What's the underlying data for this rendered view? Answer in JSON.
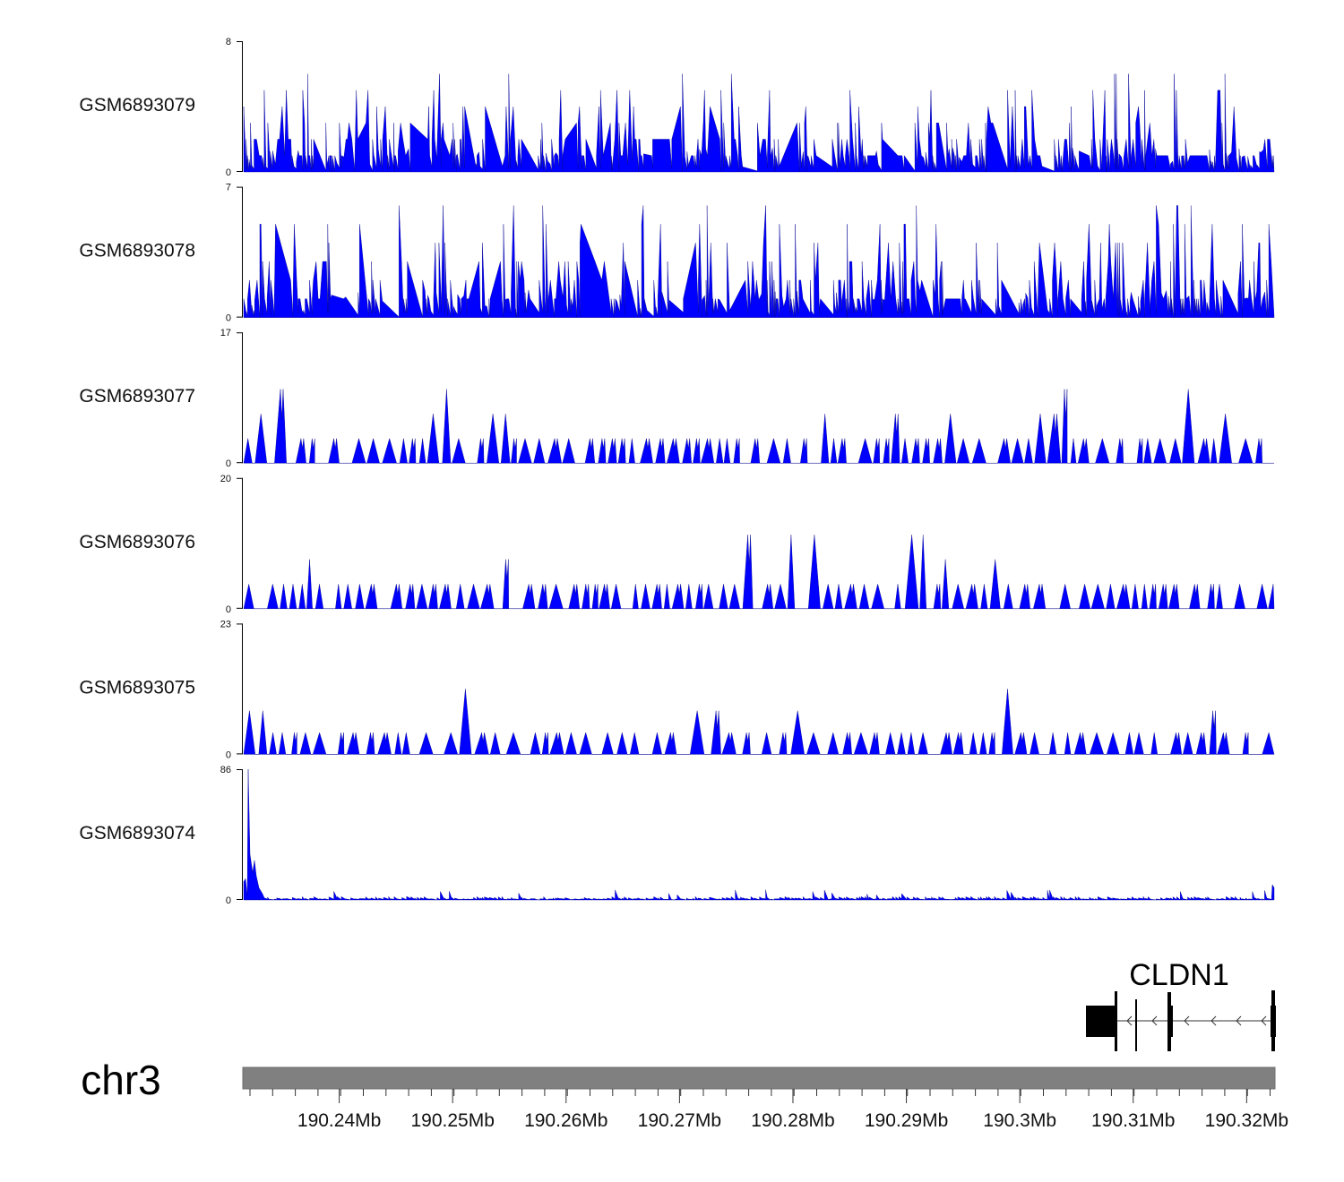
{
  "chart_data": {
    "type": "area",
    "track_color": "#0000ff",
    "x_range_mb": [
      190.2315,
      190.3225
    ],
    "tracks": [
      {
        "name": "GSM6893079",
        "ymax": 8,
        "ymin": 0
      },
      {
        "name": "GSM6893078",
        "ymax": 7,
        "ymin": 0
      },
      {
        "name": "GSM6893077",
        "ymax": 17,
        "ymin": 0
      },
      {
        "name": "GSM6893076",
        "ymax": 20,
        "ymin": 0
      },
      {
        "name": "GSM6893075",
        "ymax": 23,
        "ymin": 0
      },
      {
        "name": "GSM6893074",
        "ymax": 86,
        "ymin": 0
      }
    ],
    "gene": {
      "name": "CLDN1",
      "strand": "-",
      "start_mb": 190.306,
      "end_mb": 190.3225,
      "exons_mb": [
        [
          190.306,
          190.3087
        ],
        [
          190.3087,
          190.3089
        ],
        [
          190.3107,
          190.3109
        ],
        [
          190.3135,
          190.3138
        ],
        [
          190.3226,
          190.3228
        ]
      ]
    },
    "chromosome": "chr3",
    "x_ticks": [
      {
        "value": 190.24,
        "label": "190.24Mb"
      },
      {
        "value": 190.25,
        "label": "190.25Mb"
      },
      {
        "value": 190.26,
        "label": "190.26Mb"
      },
      {
        "value": 190.27,
        "label": "190.27Mb"
      },
      {
        "value": 190.28,
        "label": "190.28Mb"
      },
      {
        "value": 190.29,
        "label": "190.29Mb"
      },
      {
        "value": 190.3,
        "label": "190.3Mb"
      },
      {
        "value": 190.31,
        "label": "190.31Mb"
      },
      {
        "value": 190.32,
        "label": "190.32Mb"
      }
    ]
  }
}
